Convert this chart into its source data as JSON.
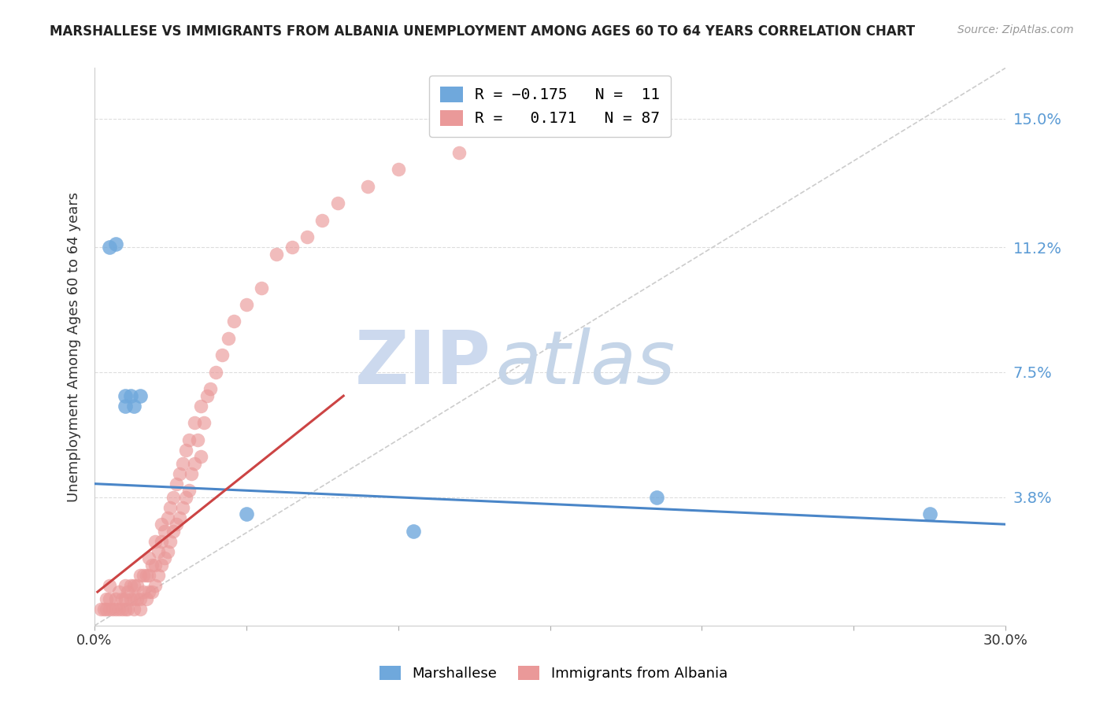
{
  "title": "MARSHALLESE VS IMMIGRANTS FROM ALBANIA UNEMPLOYMENT AMONG AGES 60 TO 64 YEARS CORRELATION CHART",
  "source": "Source: ZipAtlas.com",
  "ylabel": "Unemployment Among Ages 60 to 64 years",
  "xlim": [
    0.0,
    0.3
  ],
  "ylim": [
    0.0,
    0.165
  ],
  "ytick_right_vals": [
    0.0,
    0.038,
    0.075,
    0.112,
    0.15
  ],
  "ytick_right_labels": [
    "",
    "3.8%",
    "7.5%",
    "11.2%",
    "15.0%"
  ],
  "marshallese_color": "#6fa8dc",
  "albania_color": "#ea9999",
  "marshallese_line_color": "#4a86c8",
  "albania_line_color": "#cc4444",
  "diagonal_color": "#cccccc",
  "marshallese_x": [
    0.005,
    0.007,
    0.01,
    0.01,
    0.012,
    0.013,
    0.015,
    0.05,
    0.105,
    0.185,
    0.275
  ],
  "marshallese_y": [
    0.112,
    0.113,
    0.065,
    0.068,
    0.068,
    0.065,
    0.068,
    0.033,
    0.028,
    0.038,
    0.033
  ],
  "albania_x": [
    0.002,
    0.003,
    0.004,
    0.004,
    0.005,
    0.005,
    0.005,
    0.006,
    0.007,
    0.007,
    0.008,
    0.008,
    0.009,
    0.009,
    0.01,
    0.01,
    0.01,
    0.011,
    0.011,
    0.012,
    0.012,
    0.013,
    0.013,
    0.013,
    0.014,
    0.014,
    0.015,
    0.015,
    0.015,
    0.016,
    0.016,
    0.017,
    0.017,
    0.018,
    0.018,
    0.018,
    0.019,
    0.019,
    0.02,
    0.02,
    0.02,
    0.021,
    0.021,
    0.022,
    0.022,
    0.022,
    0.023,
    0.023,
    0.024,
    0.024,
    0.025,
    0.025,
    0.026,
    0.026,
    0.027,
    0.027,
    0.028,
    0.028,
    0.029,
    0.029,
    0.03,
    0.03,
    0.031,
    0.031,
    0.032,
    0.033,
    0.033,
    0.034,
    0.035,
    0.035,
    0.036,
    0.037,
    0.038,
    0.04,
    0.042,
    0.044,
    0.046,
    0.05,
    0.055,
    0.06,
    0.065,
    0.07,
    0.075,
    0.08,
    0.09,
    0.1,
    0.12
  ],
  "albania_y": [
    0.005,
    0.005,
    0.005,
    0.008,
    0.005,
    0.008,
    0.012,
    0.005,
    0.005,
    0.008,
    0.005,
    0.01,
    0.005,
    0.008,
    0.005,
    0.008,
    0.012,
    0.005,
    0.01,
    0.008,
    0.012,
    0.005,
    0.008,
    0.012,
    0.008,
    0.012,
    0.005,
    0.008,
    0.015,
    0.01,
    0.015,
    0.008,
    0.015,
    0.01,
    0.015,
    0.02,
    0.01,
    0.018,
    0.012,
    0.018,
    0.025,
    0.015,
    0.022,
    0.018,
    0.025,
    0.03,
    0.02,
    0.028,
    0.022,
    0.032,
    0.025,
    0.035,
    0.028,
    0.038,
    0.03,
    0.042,
    0.032,
    0.045,
    0.035,
    0.048,
    0.038,
    0.052,
    0.04,
    0.055,
    0.045,
    0.048,
    0.06,
    0.055,
    0.05,
    0.065,
    0.06,
    0.068,
    0.07,
    0.075,
    0.08,
    0.085,
    0.09,
    0.095,
    0.1,
    0.11,
    0.112,
    0.115,
    0.12,
    0.125,
    0.13,
    0.135,
    0.14
  ],
  "background_color": "#ffffff",
  "grid_color": "#dddddd",
  "marshallese_trend_x": [
    0.0,
    0.3
  ],
  "marshallese_trend_y": [
    0.042,
    0.03
  ],
  "albania_trend_x": [
    0.001,
    0.082
  ],
  "albania_trend_y": [
    0.01,
    0.068
  ]
}
